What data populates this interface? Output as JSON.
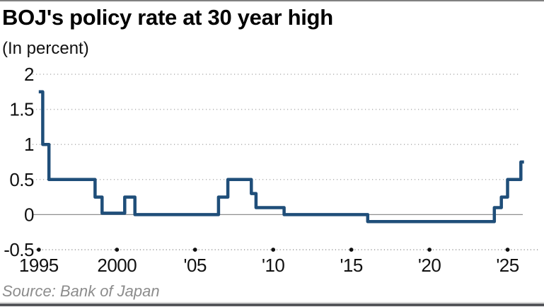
{
  "header": {
    "title": "BOJ's policy rate at 30 year high",
    "subtitle": "(In percent)"
  },
  "footer": {
    "source": "Source: Bank of Japan"
  },
  "chart_data": {
    "type": "line",
    "style": "step",
    "title": "BOJ's policy rate at 30 year high",
    "subtitle": "(In percent)",
    "source": "Source: Bank of Japan",
    "xlim": [
      1994.6,
      2025.7
    ],
    "ylim": [
      -0.5,
      2
    ],
    "grid": "dotted-horizontal",
    "legend": "none",
    "line_color": "#1f4e79",
    "zero_line_color": "#8f8f8f",
    "gridline_color": "#b3b3b3",
    "tick_dot_color": "#111111",
    "yticks": [
      {
        "value": 2,
        "label": "2"
      },
      {
        "value": 1.5,
        "label": "1.5"
      },
      {
        "value": 1,
        "label": "1"
      },
      {
        "value": 0.5,
        "label": "0.5"
      },
      {
        "value": 0,
        "label": "0"
      },
      {
        "value": -0.5,
        "label": "-0.5"
      }
    ],
    "xticks": [
      {
        "value": 1995,
        "label": "1995"
      },
      {
        "value": 2000,
        "label": "2000"
      },
      {
        "value": 2005,
        "label": "'05"
      },
      {
        "value": 2010,
        "label": "'10"
      },
      {
        "value": 2015,
        "label": "'15"
      },
      {
        "value": 2020,
        "label": "'20"
      },
      {
        "value": 2025,
        "label": "'25"
      }
    ],
    "series": [
      {
        "name": "BOJ policy rate (%)",
        "points": [
          [
            1995.0,
            1.75
          ],
          [
            1995.25,
            1.75
          ],
          [
            1995.25,
            1.0
          ],
          [
            1995.65,
            1.0
          ],
          [
            1995.65,
            0.5
          ],
          [
            1998.6,
            0.5
          ],
          [
            1998.6,
            0.25
          ],
          [
            1999.05,
            0.25
          ],
          [
            1999.05,
            0.02
          ],
          [
            2000.5,
            0.02
          ],
          [
            2000.5,
            0.25
          ],
          [
            2001.15,
            0.25
          ],
          [
            2001.15,
            0.0
          ],
          [
            2006.5,
            0.0
          ],
          [
            2006.5,
            0.25
          ],
          [
            2007.1,
            0.25
          ],
          [
            2007.1,
            0.5
          ],
          [
            2008.6,
            0.5
          ],
          [
            2008.6,
            0.3
          ],
          [
            2008.9,
            0.3
          ],
          [
            2008.9,
            0.1
          ],
          [
            2010.7,
            0.1
          ],
          [
            2010.7,
            0.0
          ],
          [
            2016.05,
            0.0
          ],
          [
            2016.05,
            -0.1
          ],
          [
            2024.15,
            -0.1
          ],
          [
            2024.15,
            0.1
          ],
          [
            2024.6,
            0.1
          ],
          [
            2024.6,
            0.25
          ],
          [
            2025.0,
            0.25
          ],
          [
            2025.0,
            0.5
          ],
          [
            2025.85,
            0.5
          ],
          [
            2025.85,
            0.75
          ],
          [
            2026.05,
            0.75
          ]
        ]
      }
    ]
  }
}
